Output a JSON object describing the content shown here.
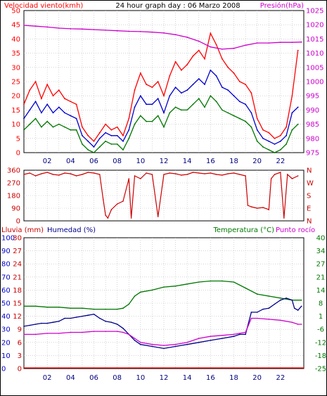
{
  "colors": {
    "background": "#ffffff",
    "plot_bg": "#ffffff",
    "frame": "#000000",
    "grid": "#b9b9b9",
    "red": "#ff0000",
    "darkred": "#cc0000",
    "blue": "#0000cc",
    "navy": "#00008b",
    "green": "#007700",
    "magenta": "#cc00cc",
    "black": "#000000"
  },
  "header": {
    "wind_title": "Velocidad viento(kmh)",
    "graph_title": "24 hour graph day : 06 Marzo 2008",
    "pressure_title": "Presión(hPa)"
  },
  "bottom_header": {
    "rain_title": "Lluvia (mm)",
    "humidity_title": "Humedad (%)",
    "temperature_title": "Temperatura (°C)",
    "dewpoint_title": "Punto rocío"
  },
  "chart_data": [
    {
      "id": "wind",
      "type": "line",
      "x_unit": "hour",
      "xlim": [
        0,
        24
      ],
      "x_ticks": [
        "02",
        "04",
        "06",
        "08",
        "10",
        "12",
        "14",
        "16",
        "18",
        "20",
        "22"
      ],
      "ylim": [
        0,
        50
      ],
      "y_ticks": [
        0,
        5,
        10,
        15,
        20,
        25,
        30,
        35,
        40,
        45,
        50
      ],
      "y2lim": [
        975,
        1025
      ],
      "y2_ticks": [
        975,
        980,
        985,
        990,
        995,
        1000,
        1005,
        1010,
        1015,
        1020,
        1025
      ],
      "series": [
        {
          "color": "#ff0000",
          "axis": "left",
          "x": [
            0,
            0.5,
            1,
            1.5,
            2,
            2.5,
            3,
            3.5,
            4,
            4.5,
            5,
            5.5,
            6,
            6.5,
            7,
            7.5,
            8,
            8.5,
            9,
            9.5,
            10,
            10.5,
            11,
            11.5,
            12,
            12.5,
            13,
            13.5,
            14,
            14.5,
            15,
            15.5,
            16,
            16.5,
            17,
            17.5,
            18,
            18.5,
            19,
            19.5,
            20,
            20.5,
            21,
            21.5,
            22,
            22.5,
            23,
            23.5
          ],
          "values": [
            17,
            22,
            25,
            19,
            24,
            20,
            22,
            19,
            18,
            17,
            9,
            6,
            4,
            7,
            10,
            8,
            9,
            6,
            12,
            22,
            28,
            24,
            23,
            25,
            20,
            27,
            32,
            29,
            31,
            34,
            36,
            33,
            42,
            38,
            33,
            30,
            28,
            25,
            24,
            21,
            12,
            8,
            7,
            5,
            6,
            9,
            20,
            36
          ]
        },
        {
          "color": "#0000cc",
          "axis": "left",
          "x": [
            0,
            0.5,
            1,
            1.5,
            2,
            2.5,
            3,
            3.5,
            4,
            4.5,
            5,
            5.5,
            6,
            6.5,
            7,
            7.5,
            8,
            8.5,
            9,
            9.5,
            10,
            10.5,
            11,
            11.5,
            12,
            12.5,
            13,
            13.5,
            14,
            14.5,
            15,
            15.5,
            16,
            16.5,
            17,
            17.5,
            18,
            18.5,
            19,
            19.5,
            20,
            20.5,
            21,
            21.5,
            22,
            22.5,
            23,
            23.5
          ],
          "values": [
            12,
            15,
            18,
            14,
            17,
            14,
            16,
            14,
            13,
            12,
            6,
            4,
            2,
            5,
            7,
            6,
            6,
            4,
            8,
            16,
            20,
            17,
            17,
            19,
            14,
            20,
            23,
            21,
            22,
            24,
            26,
            24,
            29,
            27,
            23,
            22,
            20,
            18,
            17,
            14,
            8,
            5,
            4,
            3,
            4,
            6,
            14,
            16
          ]
        },
        {
          "color": "#007700",
          "axis": "left",
          "x": [
            0,
            0.5,
            1,
            1.5,
            2,
            2.5,
            3,
            3.5,
            4,
            4.5,
            5,
            5.5,
            6,
            6.5,
            7,
            7.5,
            8,
            8.5,
            9,
            9.5,
            10,
            10.5,
            11,
            11.5,
            12,
            12.5,
            13,
            13.5,
            14,
            14.5,
            15,
            15.5,
            16,
            16.5,
            17,
            17.5,
            18,
            18.5,
            19,
            19.5,
            20,
            20.5,
            21,
            21.5,
            22,
            22.5,
            23,
            23.5
          ],
          "values": [
            8,
            10,
            12,
            9,
            11,
            9,
            10,
            9,
            8,
            8,
            3,
            1,
            0,
            2,
            4,
            3,
            3,
            1,
            5,
            10,
            13,
            11,
            11,
            13,
            9,
            14,
            16,
            15,
            15,
            17,
            19,
            16,
            20,
            18,
            15,
            14,
            13,
            12,
            11,
            9,
            4,
            2,
            1,
            0,
            1,
            3,
            8,
            10
          ]
        },
        {
          "color": "#cc00cc",
          "axis": "right",
          "x": [
            0,
            1,
            2,
            3,
            4,
            5,
            6,
            7,
            8,
            9,
            10,
            11,
            12,
            13,
            14,
            15,
            16,
            17,
            18,
            19,
            20,
            21,
            22,
            23,
            23.8
          ],
          "values": [
            1019.8,
            1019.5,
            1019.2,
            1018.8,
            1018.6,
            1018.5,
            1018.3,
            1018.1,
            1017.9,
            1017.7,
            1017.6,
            1017.4,
            1017.1,
            1016.5,
            1015.6,
            1014.2,
            1012.2,
            1011.4,
            1011.7,
            1012.8,
            1013.6,
            1013.6,
            1013.8,
            1013.8,
            1013.9
          ]
        }
      ]
    },
    {
      "id": "direction",
      "type": "line",
      "x_unit": "hour",
      "xlim": [
        0,
        24
      ],
      "ylim": [
        0,
        360
      ],
      "y_ticks": [
        0,
        90,
        180,
        270,
        360
      ],
      "y2_labels": [
        "N",
        "W",
        "S",
        "E",
        "N"
      ],
      "series": [
        {
          "color": "#cc0000",
          "x": [
            0,
            0.5,
            1,
            1.5,
            2,
            2.5,
            3,
            3.5,
            4,
            4.5,
            5,
            5.5,
            6,
            6.5,
            6.8,
            7,
            7.2,
            7.5,
            8,
            8.5,
            9,
            9.2,
            9.5,
            10,
            10.5,
            11,
            11.5,
            12,
            12.5,
            13,
            13.5,
            14,
            14.5,
            15,
            15.5,
            16,
            16.5,
            17,
            17.5,
            18,
            18.5,
            19,
            19.2,
            19.5,
            20,
            20.5,
            21,
            21.2,
            21.5,
            22,
            22.3,
            22.6,
            23,
            23.5
          ],
          "values": [
            330,
            340,
            320,
            335,
            345,
            330,
            325,
            340,
            335,
            320,
            330,
            345,
            340,
            330,
            150,
            40,
            20,
            80,
            120,
            140,
            300,
            20,
            320,
            300,
            340,
            330,
            30,
            330,
            340,
            335,
            325,
            330,
            345,
            340,
            335,
            340,
            330,
            325,
            335,
            340,
            330,
            320,
            110,
            100,
            90,
            95,
            80,
            300,
            330,
            345,
            20,
            330,
            300,
            320
          ]
        }
      ]
    },
    {
      "id": "temp_hum",
      "type": "line",
      "x_unit": "hour",
      "xlim": [
        0,
        24
      ],
      "y_ticks_rain": [
        0,
        10,
        20,
        30,
        40,
        50,
        60,
        70,
        80,
        90,
        100
      ],
      "ylim_humidity": [
        0,
        30
      ],
      "y_ticks_humidity": [
        0,
        3,
        6,
        9,
        12,
        15,
        18,
        21,
        24,
        27,
        30
      ],
      "ylim_temperature": [
        -25,
        40
      ],
      "y_ticks_temperature": [
        -25,
        -18,
        -12,
        -6,
        1,
        8,
        14,
        21,
        27,
        34,
        40
      ],
      "series": [
        {
          "color": "#007700",
          "axis": "temperature",
          "x": [
            0,
            1,
            2,
            3,
            4,
            5,
            6,
            7,
            8,
            8.5,
            9,
            9.5,
            10,
            11,
            12,
            13,
            14,
            15,
            16,
            17,
            18,
            19,
            20,
            21,
            22,
            23,
            23.8
          ],
          "values": [
            6,
            6,
            5.5,
            5.5,
            5,
            5,
            4.5,
            4.5,
            4.5,
            5,
            7,
            11,
            13,
            14,
            15.5,
            16,
            17,
            18,
            18.5,
            18.5,
            18,
            15,
            12,
            11,
            10,
            9,
            9
          ]
        },
        {
          "color": "#00008b",
          "axis": "temperature",
          "x": [
            0,
            0.5,
            1,
            1.5,
            2,
            2.5,
            3,
            3.5,
            4,
            4.5,
            5,
            5.5,
            6,
            6.5,
            7,
            7.5,
            8,
            8.5,
            9,
            9.5,
            10,
            11,
            12,
            13,
            14,
            15,
            16,
            17,
            18,
            18.5,
            19,
            19.5,
            20,
            20.5,
            21,
            21.5,
            22,
            22.5,
            23,
            23.2,
            23.5,
            23.8
          ],
          "values": [
            -4,
            -3.5,
            -3,
            -2.5,
            -2.5,
            -2,
            -1.5,
            0,
            0,
            0.5,
            1,
            1.5,
            2,
            0,
            -1.5,
            -2,
            -3,
            -5,
            -8,
            -11,
            -13,
            -14,
            -15,
            -14,
            -13,
            -12,
            -11,
            -10,
            -9,
            -8,
            -8,
            3,
            3,
            4.5,
            5,
            7,
            9,
            10,
            9,
            5,
            4,
            6
          ]
        },
        {
          "color": "#cc00cc",
          "axis": "temperature",
          "x": [
            0,
            1,
            2,
            3,
            4,
            5,
            6,
            7,
            8,
            8.5,
            9,
            9.5,
            10,
            11,
            12,
            13,
            14,
            15,
            16,
            17,
            18,
            18.5,
            19,
            19.5,
            20,
            21,
            22,
            23,
            23.5,
            23.8
          ],
          "values": [
            -8,
            -8,
            -7.5,
            -7.5,
            -7,
            -7,
            -6.5,
            -6.5,
            -6.5,
            -7,
            -8,
            -10,
            -12,
            -13,
            -13.5,
            -13,
            -12,
            -10,
            -9,
            -8.5,
            -8,
            -7.5,
            -7,
            0,
            0,
            -0.5,
            -1,
            -2,
            -3,
            -3
          ]
        },
        {
          "color": "#ff0000",
          "axis": "rain",
          "x": [
            0,
            24
          ],
          "values": [
            0,
            0
          ]
        }
      ]
    }
  ]
}
